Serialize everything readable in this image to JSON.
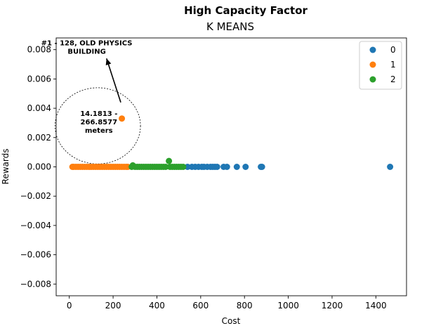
{
  "chart_data": {
    "type": "scatter",
    "title": "High Capacity Factor",
    "subtitle": "K MEANS",
    "xlabel": "Cost",
    "ylabel": "Rewards",
    "xlim": [
      -60,
      1540
    ],
    "ylim": [
      -0.0088,
      0.0088
    ],
    "x_ticks": [
      0,
      200,
      400,
      600,
      800,
      1000,
      1200,
      1400
    ],
    "y_ticks": [
      -0.008,
      -0.006,
      -0.004,
      -0.002,
      0.0,
      0.002,
      0.004,
      0.006,
      0.008
    ],
    "x_tick_labels": [
      "0",
      "200",
      "400",
      "600",
      "800",
      "1000",
      "1200",
      "1400"
    ],
    "y_tick_labels": [
      "−0.008",
      "−0.006",
      "−0.004",
      "−0.002",
      "0.000",
      "0.002",
      "0.004",
      "0.006",
      "0.008"
    ],
    "grid": false,
    "legend_position": "top-right",
    "series": [
      {
        "name": "0",
        "color": "#1f77b4",
        "points": [
          [
            540,
            0
          ],
          [
            560,
            0
          ],
          [
            575,
            0
          ],
          [
            590,
            0
          ],
          [
            605,
            0
          ],
          [
            615,
            0
          ],
          [
            630,
            0
          ],
          [
            645,
            0
          ],
          [
            655,
            0
          ],
          [
            665,
            0
          ],
          [
            675,
            0
          ],
          [
            705,
            0
          ],
          [
            720,
            0
          ],
          [
            765,
            0
          ],
          [
            805,
            0
          ],
          [
            875,
            0
          ],
          [
            880,
            0
          ],
          [
            1465,
            0
          ]
        ]
      },
      {
        "name": "1",
        "color": "#ff7f0e",
        "points": [
          [
            14.1813,
            0
          ],
          [
            20,
            0
          ],
          [
            30,
            0
          ],
          [
            40,
            0
          ],
          [
            50,
            0
          ],
          [
            60,
            0
          ],
          [
            70,
            0
          ],
          [
            80,
            0
          ],
          [
            90,
            0
          ],
          [
            100,
            0
          ],
          [
            110,
            0
          ],
          [
            120,
            0
          ],
          [
            130,
            0
          ],
          [
            140,
            0
          ],
          [
            150,
            0
          ],
          [
            160,
            0
          ],
          [
            170,
            0
          ],
          [
            180,
            0
          ],
          [
            190,
            0
          ],
          [
            200,
            0
          ],
          [
            210,
            0
          ],
          [
            220,
            0
          ],
          [
            230,
            0
          ],
          [
            240,
            0
          ],
          [
            250,
            0
          ],
          [
            260,
            0
          ],
          [
            266.8577,
            0
          ],
          [
            240,
            0.0033
          ]
        ]
      },
      {
        "name": "2",
        "color": "#2ca02c",
        "points": [
          [
            285,
            0
          ],
          [
            290,
            0.0001
          ],
          [
            300,
            0
          ],
          [
            310,
            0
          ],
          [
            320,
            0
          ],
          [
            330,
            0
          ],
          [
            340,
            0
          ],
          [
            350,
            0
          ],
          [
            360,
            0
          ],
          [
            370,
            0
          ],
          [
            380,
            0
          ],
          [
            390,
            0
          ],
          [
            400,
            0
          ],
          [
            410,
            0
          ],
          [
            420,
            0
          ],
          [
            430,
            0
          ],
          [
            440,
            0
          ],
          [
            455,
            0.0004
          ],
          [
            460,
            0
          ],
          [
            470,
            0
          ],
          [
            480,
            0
          ],
          [
            490,
            0
          ],
          [
            500,
            0
          ],
          [
            510,
            0
          ],
          [
            520,
            0
          ]
        ]
      }
    ],
    "annotations": [
      {
        "text": "#1 - 128, OLD PHYSICS\nBUILDING",
        "arrow_from": [
          235,
          0.0044
        ],
        "arrow_to": [
          170,
          0.0074
        ],
        "text_anchor": [
          240,
          0.0083
        ]
      },
      {
        "text": "14.1813 -\n266.8577\nmeters",
        "ellipse_center": [
          130,
          0.0028
        ],
        "ellipse_rx": 195,
        "ellipse_ry": 0.0026,
        "text_anchor": [
          135,
          0.0031
        ]
      }
    ]
  }
}
